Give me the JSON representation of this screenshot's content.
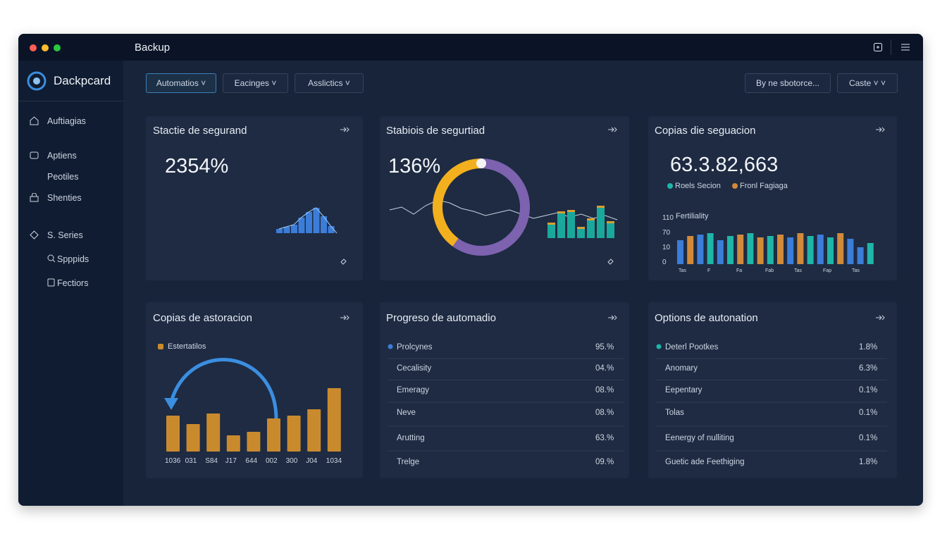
{
  "window": {
    "title": "Backup"
  },
  "sidebar": {
    "brand": "Dackpcard",
    "items": [
      "Auftiagias",
      "Aptiens",
      "Peotiles",
      "Shenties",
      "S. Series",
      "Spppids",
      "Fectiors"
    ]
  },
  "toolbar": {
    "filters": [
      "Automatios",
      "Eacinges",
      "Asslictics"
    ],
    "search": "By ne sbotorce...",
    "sort": "Caste"
  },
  "cards": [
    {
      "title": "Stactie de segurand",
      "value": "2354%",
      "bars": [
        6,
        9,
        12,
        22,
        30,
        36,
        24,
        10
      ],
      "color": "#3b7dd8"
    },
    {
      "title": "Stabiois de segurtiad",
      "value": "136%",
      "donut": [
        {
          "value": 40,
          "color": "#f2b01e"
        },
        {
          "value": 60,
          "color": "#7d62b0"
        }
      ],
      "line": [
        2,
        6,
        -4,
        8,
        16,
        12,
        4,
        0,
        -6,
        -2,
        2,
        -4,
        -10,
        -6,
        -2,
        -8,
        -4,
        -10,
        -6,
        -12
      ],
      "bars": [
        22,
        38,
        40,
        16,
        28,
        46,
        24
      ],
      "bar_color": "#1aa89c",
      "cap_color": "#d6a032"
    },
    {
      "title": "Copias die seguacion",
      "value": "63.3.82,663",
      "legend": [
        {
          "name": "Roels Secion",
          "color": "#1fb5a8"
        },
        {
          "name": "Fronl Fagiaga",
          "color": "#d08a3a"
        }
      ],
      "axis_title": "Fertiliality",
      "axis_labels": [
        "110",
        "70",
        "10",
        "0"
      ],
      "bars": [
        34,
        40,
        42,
        44,
        34,
        40,
        42,
        44,
        38,
        40,
        42,
        38,
        44,
        40,
        42,
        38,
        44,
        36,
        24,
        30
      ],
      "bar_colors": [
        "#3b7dd8",
        "#d08a3a",
        "#3b7dd8",
        "#1fb5a8",
        "#3b7dd8",
        "#1fb5a8",
        "#d08a3a",
        "#1fb5a8",
        "#d08a3a",
        "#1fb5a8",
        "#d08a3a",
        "#3b7dd8",
        "#d08a3a",
        "#1fb5a8",
        "#3b7dd8",
        "#1fb5a8",
        "#d08a3a",
        "#3b7dd8",
        "#3b7dd8",
        "#1fb5a8"
      ],
      "x_labels": [
        "Tas",
        "F",
        "Fa",
        "Fab",
        "Tas",
        "Fap",
        "Tas"
      ]
    },
    {
      "title": "Copias de astoracion",
      "legend": "Estertatilos",
      "bars": [
        51,
        39,
        54,
        23,
        28,
        47,
        51,
        60,
        90
      ],
      "x_labels": [
        "1036",
        "031",
        "S84",
        "J17",
        "644",
        "002",
        "300",
        "J04",
        "1034"
      ],
      "color": "#c98a2e"
    },
    {
      "title": "Progreso de automadio",
      "rows": [
        [
          "Prolcynes",
          "95.%"
        ],
        [
          "Cecalisity",
          "04.%"
        ],
        [
          "Emeragy",
          "08.%"
        ],
        [
          "Neve",
          "08.%"
        ],
        [
          "Arutting",
          "63.%"
        ],
        [
          "Trelge",
          "09.%"
        ]
      ]
    },
    {
      "title": "Options de autonation",
      "rows": [
        [
          "Deterl Pootkes",
          "1.8%"
        ],
        [
          "Anomary",
          "6.3%"
        ],
        [
          "Eepentary",
          "0.1%"
        ],
        [
          "Tolas",
          "0.1%"
        ],
        [
          "Eenergy of nulliting",
          "0.1%"
        ],
        [
          "Guetic ade Feethiging",
          "1.8%"
        ]
      ]
    }
  ]
}
